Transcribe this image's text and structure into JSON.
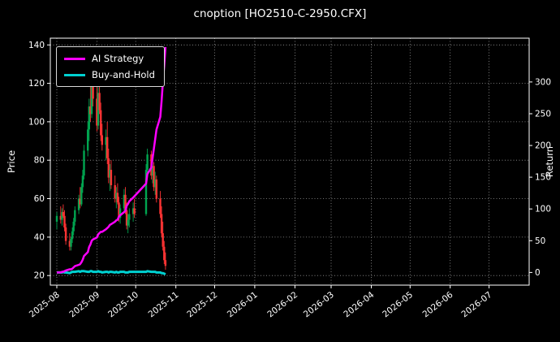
{
  "chart_data": {
    "type": "candlestick+line",
    "title": "cnoption [HO2510-C-2950.CFX]",
    "colors": {
      "background": "#000000",
      "text": "#ffffff",
      "grid": "#9a9a9a",
      "spine": "#ffffff"
    },
    "left_axis": {
      "label": "Price",
      "ticks": [
        20,
        40,
        60,
        80,
        100,
        120,
        140
      ],
      "lim": [
        15,
        143.5
      ]
    },
    "right_axis": {
      "label": "Return",
      "ticks": [
        0,
        50,
        100,
        150,
        200,
        250,
        300
      ],
      "lim": [
        -20,
        369
      ]
    },
    "x_tick_labels": [
      "2025-08",
      "2025-09",
      "2025-10",
      "2025-11",
      "2025-12",
      "2026-01",
      "2026-02",
      "2026-03",
      "2026-04",
      "2026-05",
      "2026-06",
      "2026-07"
    ],
    "x_range": [
      "2025-07-27",
      "2026-08-01"
    ],
    "grid": true,
    "legend": {
      "position": "upper-left",
      "entries": [
        {
          "label": "AI Strategy",
          "color": "#ff00ff"
        },
        {
          "label": "Buy-and-Hold",
          "color": "#00d1d1"
        }
      ]
    },
    "candle_colors": {
      "up": "#00a550",
      "down": "#ff3333"
    },
    "dates": [
      "2025-08-01",
      "2025-08-04",
      "2025-08-05",
      "2025-08-06",
      "2025-08-07",
      "2025-08-08",
      "2025-08-11",
      "2025-08-12",
      "2025-08-13",
      "2025-08-14",
      "2025-08-15",
      "2025-08-18",
      "2025-08-19",
      "2025-08-20",
      "2025-08-21",
      "2025-08-22",
      "2025-08-25",
      "2025-08-26",
      "2025-08-27",
      "2025-08-28",
      "2025-08-29",
      "2025-09-01",
      "2025-09-02",
      "2025-09-03",
      "2025-09-04",
      "2025-09-05",
      "2025-09-08",
      "2025-09-09",
      "2025-09-10",
      "2025-09-11",
      "2025-09-12",
      "2025-09-15",
      "2025-09-16",
      "2025-09-17",
      "2025-09-18",
      "2025-09-19",
      "2025-09-22",
      "2025-09-23",
      "2025-09-24",
      "2025-09-25",
      "2025-09-26",
      "2025-09-29",
      "2025-09-30",
      "2025-10-09",
      "2025-10-10",
      "2025-10-13",
      "2025-10-14",
      "2025-10-15",
      "2025-10-16",
      "2025-10-17",
      "2025-10-20",
      "2025-10-21",
      "2025-10-22",
      "2025-10-23",
      "2025-10-24"
    ],
    "candles_ohlc": [
      [
        48,
        53,
        44,
        51
      ],
      [
        51,
        56,
        47,
        49
      ],
      [
        49,
        55,
        46,
        53
      ],
      [
        53,
        57,
        50,
        51
      ],
      [
        51,
        54,
        43,
        45
      ],
      [
        45,
        47,
        36,
        38
      ],
      [
        38,
        42,
        33,
        35
      ],
      [
        35,
        40,
        33,
        39
      ],
      [
        39,
        45,
        37,
        43
      ],
      [
        43,
        50,
        41,
        48
      ],
      [
        48,
        56,
        46,
        54
      ],
      [
        54,
        62,
        52,
        60
      ],
      [
        60,
        66,
        55,
        57
      ],
      [
        57,
        68,
        56,
        66
      ],
      [
        66,
        75,
        63,
        72
      ],
      [
        72,
        88,
        70,
        85
      ],
      [
        85,
        100,
        82,
        96
      ],
      [
        96,
        112,
        90,
        108
      ],
      [
        108,
        128,
        100,
        104
      ],
      [
        104,
        135,
        102,
        124
      ],
      [
        124,
        130,
        108,
        112
      ],
      [
        112,
        120,
        95,
        98
      ],
      [
        98,
        118,
        96,
        115
      ],
      [
        115,
        122,
        104,
        106
      ],
      [
        106,
        110,
        90,
        93
      ],
      [
        93,
        99,
        85,
        88
      ],
      [
        88,
        96,
        80,
        92
      ],
      [
        92,
        100,
        78,
        81
      ],
      [
        81,
        86,
        68,
        71
      ],
      [
        71,
        78,
        64,
        75
      ],
      [
        75,
        80,
        65,
        67
      ],
      [
        67,
        72,
        58,
        60
      ],
      [
        60,
        66,
        55,
        63
      ],
      [
        63,
        68,
        57,
        58
      ],
      [
        58,
        61,
        48,
        50
      ],
      [
        50,
        57,
        47,
        55
      ],
      [
        55,
        65,
        53,
        62
      ],
      [
        62,
        66,
        52,
        54
      ],
      [
        54,
        58,
        44,
        46
      ],
      [
        46,
        52,
        42,
        49
      ],
      [
        49,
        55,
        45,
        52
      ],
      [
        52,
        58,
        48,
        55
      ],
      [
        55,
        60,
        50,
        52
      ],
      [
        52,
        78,
        51,
        75
      ],
      [
        75,
        86,
        72,
        83
      ],
      [
        83,
        85,
        70,
        72
      ],
      [
        72,
        80,
        68,
        77
      ],
      [
        77,
        79,
        64,
        66
      ],
      [
        66,
        74,
        62,
        70
      ],
      [
        70,
        72,
        58,
        60
      ],
      [
        60,
        64,
        50,
        52
      ],
      [
        52,
        56,
        40,
        42
      ],
      [
        42,
        48,
        33,
        35
      ],
      [
        35,
        38,
        26,
        28
      ],
      [
        28,
        32,
        23,
        25
      ]
    ],
    "series": [
      {
        "name": "AI Strategy",
        "axis": "right",
        "color": "#ff00ff",
        "width": 2.5,
        "values": [
          0,
          0,
          1,
          1,
          2,
          3,
          5,
          5,
          6,
          8,
          10,
          12,
          13,
          16,
          20,
          26,
          32,
          40,
          44,
          50,
          52,
          55,
          60,
          62,
          64,
          64,
          68,
          70,
          72,
          75,
          76,
          80,
          82,
          83,
          88,
          90,
          95,
          97,
          105,
          108,
          112,
          118,
          120,
          140,
          155,
          165,
          180,
          195,
          210,
          225,
          245,
          270,
          300,
          325,
          355
        ]
      },
      {
        "name": "Buy-and-Hold",
        "axis": "right",
        "color": "#00d1d1",
        "width": 3,
        "values": [
          0,
          0,
          0,
          1,
          0,
          0,
          -1,
          0,
          1,
          1,
          1,
          2,
          1,
          2,
          2,
          2,
          1,
          1,
          2,
          2,
          1,
          1,
          2,
          1,
          1,
          0,
          1,
          1,
          0,
          1,
          1,
          0,
          1,
          0,
          0,
          1,
          1,
          0,
          0,
          0,
          1,
          1,
          1,
          1,
          2,
          1,
          1,
          1,
          1,
          0,
          0,
          -1,
          -1,
          -2,
          -3
        ]
      }
    ]
  }
}
